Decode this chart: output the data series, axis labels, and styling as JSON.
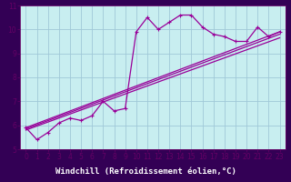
{
  "xlabel": "Windchill (Refroidissement éolien,°C)",
  "bg_color": "#c8eef0",
  "grid_color": "#a0c8d8",
  "line_color": "#990099",
  "spine_color": "#660066",
  "xlabel_bg": "#330055",
  "xlabel_color": "#ffffff",
  "xlim": [
    -0.5,
    23.5
  ],
  "ylim": [
    5,
    11
  ],
  "yticks": [
    5,
    6,
    7,
    8,
    9,
    10,
    11
  ],
  "xticks": [
    0,
    1,
    2,
    3,
    4,
    5,
    6,
    7,
    8,
    9,
    10,
    11,
    12,
    13,
    14,
    15,
    16,
    17,
    18,
    19,
    20,
    21,
    22,
    23
  ],
  "series1_x": [
    0,
    1,
    2,
    3,
    4,
    5,
    6,
    7,
    8,
    9,
    10,
    11,
    12,
    13,
    14,
    15,
    16,
    17,
    18,
    19,
    20,
    21,
    22,
    23
  ],
  "series1_y": [
    5.9,
    5.4,
    5.7,
    6.1,
    6.3,
    6.2,
    6.4,
    7.0,
    6.6,
    6.7,
    9.9,
    10.5,
    10.0,
    10.3,
    10.6,
    10.6,
    10.1,
    9.8,
    9.7,
    9.5,
    9.5,
    10.1,
    9.7,
    9.9
  ],
  "trend1_x": [
    0,
    23
  ],
  "trend1_y": [
    5.9,
    9.9
  ],
  "trend2_x": [
    0,
    23
  ],
  "trend2_y": [
    5.85,
    9.8
  ],
  "trend3_x": [
    0,
    23
  ],
  "trend3_y": [
    5.8,
    9.65
  ],
  "xlabel_fontsize": 6.5,
  "tick_fontsize": 5.5
}
